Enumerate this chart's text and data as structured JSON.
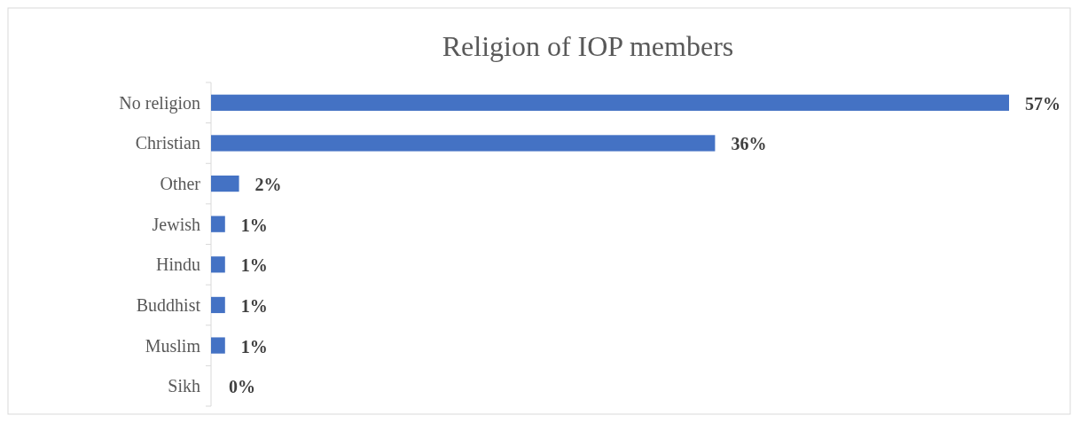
{
  "chart_data": {
    "type": "bar",
    "orientation": "horizontal",
    "title": "Religion of IOP members",
    "categories": [
      "No religion",
      "Christian",
      "Other",
      "Jewish",
      "Hindu",
      "Buddhist",
      "Muslim",
      "Sikh"
    ],
    "values": [
      57,
      36,
      2,
      1,
      1,
      1,
      1,
      0
    ],
    "value_labels": [
      "57%",
      "36%",
      "2%",
      "1%",
      "1%",
      "1%",
      "1%",
      "0%"
    ],
    "color": "#4472c4"
  }
}
